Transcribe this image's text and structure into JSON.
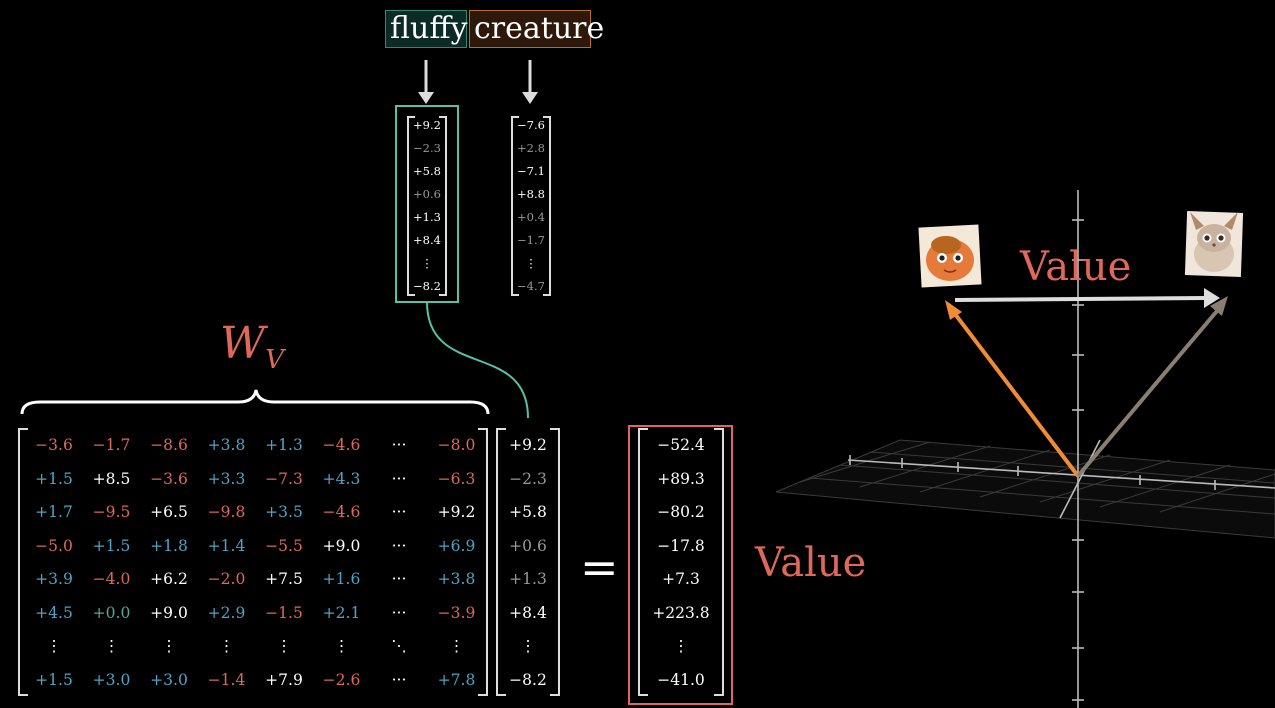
{
  "words": {
    "fluffy": "fluffy",
    "creature": "creature"
  },
  "fluffy_vector": [
    "+9.2",
    "−2.3",
    "+5.8",
    "+0.6",
    "+1.3",
    "+8.4",
    "⋮",
    "−8.2"
  ],
  "creature_vector": [
    "−7.6",
    "+2.8",
    "−7.1",
    "+8.8",
    "+0.4",
    "−1.7",
    "⋮",
    "−4.7"
  ],
  "matrix_label": "W",
  "matrix_label_sub": "V",
  "matrix": [
    [
      {
        "t": "−3.6",
        "c": "r"
      },
      {
        "t": "−1.7",
        "c": "r"
      },
      {
        "t": "−8.6",
        "c": "r"
      },
      {
        "t": "+3.8",
        "c": "b"
      },
      {
        "t": "+1.3",
        "c": "b"
      },
      {
        "t": "−4.6",
        "c": "r"
      },
      {
        "t": "···",
        "c": "w"
      },
      {
        "t": "−8.0",
        "c": "r"
      }
    ],
    [
      {
        "t": "+1.5",
        "c": "b"
      },
      {
        "t": "+8.5",
        "c": "w"
      },
      {
        "t": "−3.6",
        "c": "r"
      },
      {
        "t": "+3.3",
        "c": "b"
      },
      {
        "t": "−7.3",
        "c": "r"
      },
      {
        "t": "+4.3",
        "c": "b"
      },
      {
        "t": "···",
        "c": "w"
      },
      {
        "t": "−6.3",
        "c": "r"
      }
    ],
    [
      {
        "t": "+1.7",
        "c": "b"
      },
      {
        "t": "−9.5",
        "c": "r"
      },
      {
        "t": "+6.5",
        "c": "w"
      },
      {
        "t": "−9.8",
        "c": "r"
      },
      {
        "t": "+3.5",
        "c": "b"
      },
      {
        "t": "−4.6",
        "c": "r"
      },
      {
        "t": "···",
        "c": "w"
      },
      {
        "t": "+9.2",
        "c": "w"
      }
    ],
    [
      {
        "t": "−5.0",
        "c": "r"
      },
      {
        "t": "+1.5",
        "c": "b"
      },
      {
        "t": "+1.8",
        "c": "b"
      },
      {
        "t": "+1.4",
        "c": "b"
      },
      {
        "t": "−5.5",
        "c": "r"
      },
      {
        "t": "+9.0",
        "c": "w"
      },
      {
        "t": "···",
        "c": "w"
      },
      {
        "t": "+6.9",
        "c": "b"
      }
    ],
    [
      {
        "t": "+3.9",
        "c": "b"
      },
      {
        "t": "−4.0",
        "c": "r"
      },
      {
        "t": "+6.2",
        "c": "w"
      },
      {
        "t": "−2.0",
        "c": "r"
      },
      {
        "t": "+7.5",
        "c": "w"
      },
      {
        "t": "+1.6",
        "c": "b"
      },
      {
        "t": "···",
        "c": "w"
      },
      {
        "t": "+3.8",
        "c": "b"
      }
    ],
    [
      {
        "t": "+4.5",
        "c": "b"
      },
      {
        "t": "+0.0",
        "c": "g"
      },
      {
        "t": "+9.0",
        "c": "w"
      },
      {
        "t": "+2.9",
        "c": "b"
      },
      {
        "t": "−1.5",
        "c": "r"
      },
      {
        "t": "+2.1",
        "c": "b"
      },
      {
        "t": "···",
        "c": "w"
      },
      {
        "t": "−3.9",
        "c": "r"
      }
    ],
    [
      {
        "t": "⋮",
        "c": "w"
      },
      {
        "t": "⋮",
        "c": "w"
      },
      {
        "t": "⋮",
        "c": "w"
      },
      {
        "t": "⋮",
        "c": "w"
      },
      {
        "t": "⋮",
        "c": "w"
      },
      {
        "t": "⋮",
        "c": "w"
      },
      {
        "t": "⋱",
        "c": "w"
      },
      {
        "t": "⋮",
        "c": "w"
      }
    ],
    [
      {
        "t": "+1.5",
        "c": "b"
      },
      {
        "t": "+3.0",
        "c": "b"
      },
      {
        "t": "+3.0",
        "c": "b"
      },
      {
        "t": "−1.4",
        "c": "r"
      },
      {
        "t": "+7.9",
        "c": "w"
      },
      {
        "t": "−2.6",
        "c": "r"
      },
      {
        "t": "···",
        "c": "w"
      },
      {
        "t": "+7.8",
        "c": "b"
      }
    ]
  ],
  "input_vector": [
    "+9.2",
    "−2.3",
    "+5.8",
    "+0.6",
    "+1.3",
    "+8.4",
    "⋮",
    "−8.2"
  ],
  "equals": "=",
  "result_vector": [
    "−52.4",
    "+89.3",
    "−80.2",
    "−17.8",
    "+7.3",
    "+223.8",
    "⋮",
    "−41.0"
  ],
  "result_label": "Value",
  "arrow_label": "Value",
  "colors": {
    "red": "#e0685a",
    "blue": "#4fa3c9",
    "teal": "#55c2a6",
    "orange": "#f08c34",
    "grey": "#8a7e72"
  },
  "icons": {
    "creature_image": "orange-creature-icon",
    "fluffy_image": "fluffy-creature-icon"
  }
}
